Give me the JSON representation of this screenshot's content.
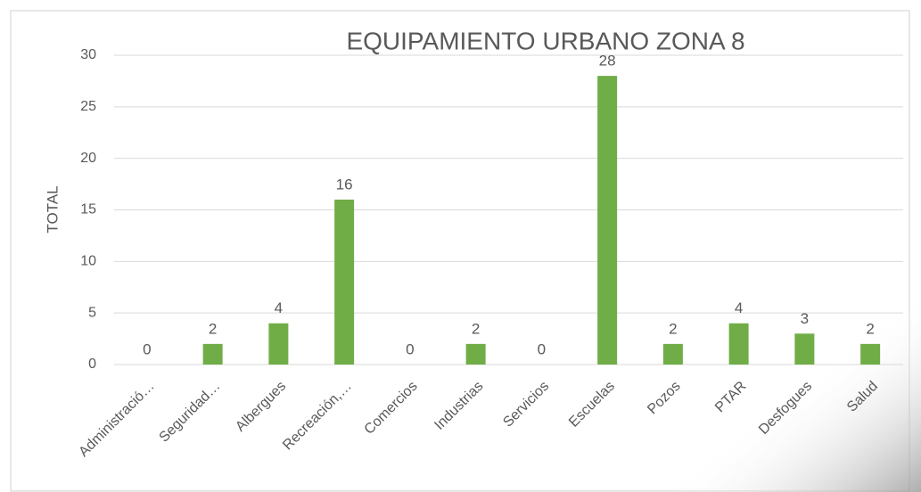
{
  "chart_data": {
    "type": "bar",
    "title": "EQUIPAMIENTO URBANO ZONA 8",
    "y_label": "TOTAL",
    "categories": [
      "Administració…",
      "Seguridad…",
      "Albergues",
      "Recreación,…",
      "Comercios",
      "Industrias",
      "Servicios",
      "Escuelas",
      "Pozos",
      "PTAR",
      "Desfogues",
      "Salud"
    ],
    "values": [
      0,
      2,
      4,
      16,
      0,
      2,
      0,
      28,
      2,
      4,
      3,
      2
    ],
    "color": "#70ad47",
    "ylim": [
      0,
      30
    ],
    "yticks": [
      0,
      5,
      10,
      15,
      20,
      25,
      30
    ],
    "grid": true,
    "data_labels": true
  }
}
